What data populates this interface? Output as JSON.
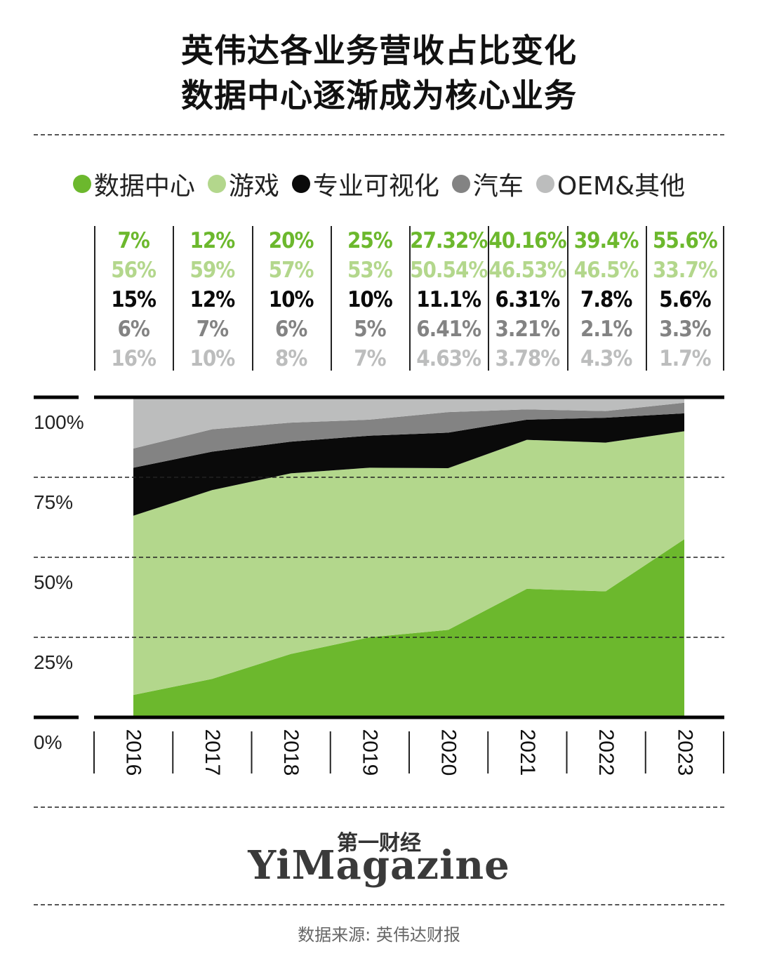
{
  "title_line1": "英伟达各业务营收占比变化",
  "title_line2": "数据中心逐渐成为核心业务",
  "brand_cn": "第一财经",
  "brand_en": "YiMagazine",
  "source": "数据来源: 英伟达财报",
  "colors": {
    "data_center": "#6cb82d",
    "gaming": "#b3d78c",
    "pro_vis": "#0a0a0a",
    "auto": "#838383",
    "oem": "#bcbdbd"
  },
  "chart_data": {
    "type": "area",
    "stacked": true,
    "normalized_percent": true,
    "x": [
      "2016",
      "2017",
      "2018",
      "2019",
      "2020",
      "2021",
      "2022",
      "2023"
    ],
    "series": [
      {
        "name": "数据中心",
        "color": "#6cb82d",
        "labels": [
          "7%",
          "12%",
          "20%",
          "25%",
          "27.32%",
          "40.16%",
          "39.4%",
          "55.6%"
        ],
        "values": [
          7,
          12,
          20,
          25,
          27.32,
          40.16,
          39.4,
          55.6
        ]
      },
      {
        "name": "游戏",
        "color": "#b3d78c",
        "labels": [
          "56%",
          "59%",
          "57%",
          "53%",
          "50.54%",
          "46.53%",
          "46.5%",
          "33.7%"
        ],
        "values": [
          56,
          59,
          57,
          53,
          50.54,
          46.53,
          46.5,
          33.7
        ]
      },
      {
        "name": "专业可视化",
        "color": "#0a0a0a",
        "labels": [
          "15%",
          "12%",
          "10%",
          "10%",
          "11.1%",
          "6.31%",
          "7.8%",
          "5.6%"
        ],
        "values": [
          15,
          12,
          10,
          10,
          11.1,
          6.31,
          7.8,
          5.6
        ]
      },
      {
        "name": "汽车",
        "color": "#838383",
        "labels": [
          "6%",
          "7%",
          "6%",
          "5%",
          "6.41%",
          "3.21%",
          "2.1%",
          "3.3%"
        ],
        "values": [
          6,
          7,
          6,
          5,
          6.41,
          3.21,
          2.1,
          3.3
        ]
      },
      {
        "name": "OEM&其他",
        "color": "#bcbdbd",
        "labels": [
          "16%",
          "10%",
          "8%",
          "7%",
          "4.63%",
          "3.78%",
          "4.3%",
          "1.7%"
        ],
        "values": [
          16,
          10,
          8,
          7,
          4.63,
          3.78,
          4.3,
          1.7
        ]
      }
    ],
    "y_ticks": [
      "100%",
      "75%",
      "50%",
      "25%",
      "0%"
    ],
    "ylim": [
      0,
      100
    ],
    "grid": "dashed horizontal",
    "legend": "top"
  }
}
